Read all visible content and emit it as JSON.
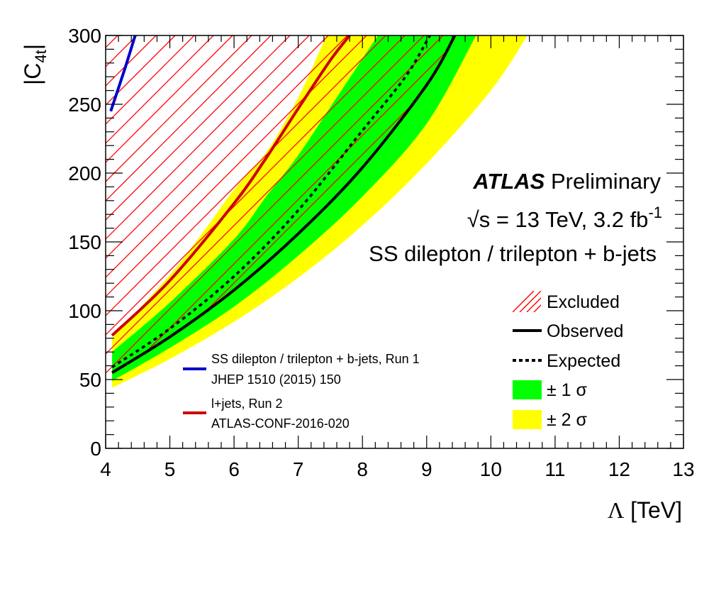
{
  "chart_data": {
    "type": "line",
    "xlabel_symbol": "Λ",
    "xlabel_unit": "[TeV]",
    "ylabel": "|C",
    "ylabel_sub": "4t",
    "ylabel_close": "|",
    "xlim": [
      4,
      13
    ],
    "ylim": [
      0,
      300
    ],
    "x_ticks": [
      "4",
      "5",
      "6",
      "7",
      "8",
      "9",
      "10",
      "11",
      "12",
      "13"
    ],
    "y_ticks": [
      "0",
      "50",
      "100",
      "150",
      "200",
      "250",
      "300"
    ],
    "atlas_label": "ATLAS",
    "atlas_sub": "Preliminary",
    "energy_sqrt": "√",
    "energy_s": "s = 13 TeV, 3.2 fb",
    "energy_sup": "-1",
    "analysis": "SS dilepton / trilepton + b-jets",
    "legend": {
      "excluded": "Excluded",
      "observed": "Observed",
      "expected": "Expected",
      "band1": "± 1 σ",
      "band2": "± 2 σ",
      "run1_line1": "SS dilepton / trilepton + b-jets, Run 1",
      "run1_line2": "JHEP 1510 (2015) 150",
      "run2_line1": "l+jets, Run 2",
      "run2_line2": "ATLAS-CONF-2016-020"
    },
    "colors": {
      "observed": "#000000",
      "expected": "#000000",
      "band1": "#00ff00",
      "band2": "#ffff00",
      "run1": "#0000cc",
      "run2": "#cc0000",
      "hatch": "#ff0000"
    },
    "series": [
      {
        "key": "observed",
        "x": [
          4.1,
          5.0,
          6.0,
          7.0,
          8.0,
          9.0,
          9.44
        ],
        "y": [
          55,
          81,
          115,
          156,
          204,
          264,
          300
        ]
      },
      {
        "key": "expected",
        "x": [
          4.1,
          5.0,
          6.0,
          7.0,
          8.0,
          8.67,
          9.05
        ],
        "y": [
          59,
          87,
          125,
          173,
          231,
          270,
          300
        ]
      },
      {
        "key": "band1_upper",
        "x": [
          4.1,
          5.0,
          6.0,
          6.5,
          7.0,
          7.6,
          8.24
        ],
        "y": [
          70,
          106,
          152,
          183,
          213,
          255,
          300
        ]
      },
      {
        "key": "band1_lower",
        "x": [
          4.1,
          5.0,
          6.0,
          7.0,
          8.0,
          9.0,
          9.77
        ],
        "y": [
          49,
          73,
          103,
          140,
          183,
          236,
          300
        ]
      },
      {
        "key": "band2_upper",
        "x": [
          4.1,
          5.0,
          5.5,
          6.0,
          6.5,
          7.0,
          7.44
        ],
        "y": [
          80,
          126,
          156,
          188,
          215,
          255,
          300
        ]
      },
      {
        "key": "band2_lower",
        "x": [
          4.1,
          5.0,
          6.0,
          7.0,
          8.0,
          9.0,
          10.0,
          10.57
        ],
        "y": [
          44,
          65,
          92,
          124,
          162,
          207,
          260,
          300
        ]
      },
      {
        "key": "run1",
        "x": [
          4.08,
          4.3,
          4.46
        ],
        "y": [
          245,
          276,
          300
        ]
      },
      {
        "key": "run2",
        "x": [
          4.1,
          5.0,
          6.0,
          6.5,
          7.0,
          7.5,
          7.8
        ],
        "y": [
          82,
          122,
          178,
          211,
          247,
          282,
          300
        ]
      }
    ]
  }
}
